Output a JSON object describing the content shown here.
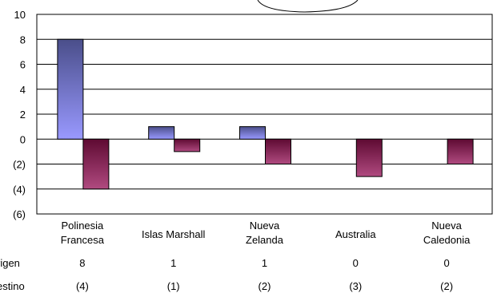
{
  "chart_data": {
    "type": "bar",
    "categories": [
      [
        "Polinesia",
        "Francesa"
      ],
      [
        "Islas Marshall"
      ],
      [
        "Nueva",
        "Zelanda"
      ],
      [
        "Australia"
      ],
      [
        "Nueva",
        "Caledonia"
      ]
    ],
    "series": [
      {
        "name": "Origen",
        "values": [
          8,
          1,
          1,
          0,
          0
        ],
        "labels": [
          "8",
          "1",
          "1",
          "0",
          "0"
        ],
        "color_top": "#4a4e8a",
        "color_bottom": "#9999ff"
      },
      {
        "name": "Destino",
        "values": [
          -4,
          -1,
          -2,
          -3,
          -2
        ],
        "labels": [
          "(4)",
          "(1)",
          "(2)",
          "(3)",
          "(2)"
        ],
        "color_top": "#5e0a32",
        "color_bottom": "#b04a80"
      }
    ],
    "y_ticks": [
      "10",
      "8",
      "6",
      "4",
      "2",
      "0",
      "(2)",
      "(4)",
      "(6)"
    ],
    "ylim": [
      -6,
      10
    ],
    "grid": true,
    "data_table": true,
    "table_row_labels": [
      "rigen",
      "estino"
    ]
  }
}
